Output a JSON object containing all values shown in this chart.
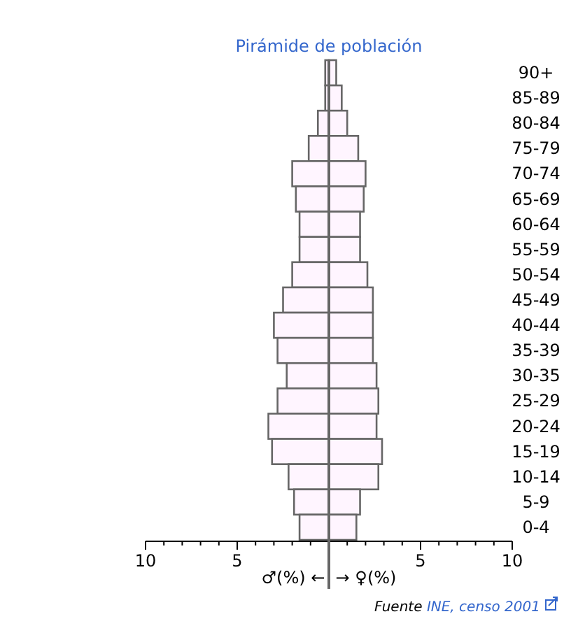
{
  "chart_data": {
    "type": "bar",
    "orientation": "horizontal",
    "stacked": true,
    "title": "Pirámide de población",
    "xlabel": "♂(%) ←  → ♀(%)",
    "categories": [
      "90+",
      "85-89",
      "80-84",
      "75-79",
      "70-74",
      "65-69",
      "60-64",
      "55-59",
      "50-54",
      "45-49",
      "40-44",
      "35-39",
      "30-35",
      "25-29",
      "20-24",
      "15-19",
      "10-14",
      "5-9",
      "0-4"
    ],
    "series": [
      {
        "color": "#fff5ff",
        "values": [
          -0.2,
          -0.2,
          -0.6,
          -1.1,
          -2.0,
          -1.8,
          -1.6,
          -1.6,
          -2.0,
          -2.5,
          -3.0,
          -2.8,
          -2.3,
          -2.8,
          -3.3,
          -3.1,
          -2.2,
          -1.9,
          -1.6
        ]
      },
      {
        "color": "#fff5ff",
        "values": [
          0.4,
          0.7,
          1.0,
          1.6,
          2.0,
          1.9,
          1.7,
          1.7,
          2.1,
          2.4,
          2.4,
          2.4,
          2.6,
          2.7,
          2.6,
          2.9,
          2.7,
          1.7,
          1.5
        ]
      }
    ],
    "xlim": [
      -10,
      10
    ],
    "xticks": [
      {
        "value": -10,
        "label": "10"
      },
      {
        "value": -9,
        "label": null
      },
      {
        "value": -8,
        "label": null
      },
      {
        "value": -7,
        "label": null
      },
      {
        "value": -6,
        "label": null
      },
      {
        "value": -5,
        "label": "5"
      },
      {
        "value": -4,
        "label": null
      },
      {
        "value": -3,
        "label": null
      },
      {
        "value": -2,
        "label": null
      },
      {
        "value": -1,
        "label": null
      },
      {
        "value": 0,
        "label": null
      },
      {
        "value": 1,
        "label": null
      },
      {
        "value": 2,
        "label": null
      },
      {
        "value": 3,
        "label": null
      },
      {
        "value": 4,
        "label": null
      },
      {
        "value": 5,
        "label": "5"
      },
      {
        "value": 6,
        "label": null
      },
      {
        "value": 7,
        "label": null
      },
      {
        "value": 8,
        "label": null
      },
      {
        "value": 9,
        "label": null
      },
      {
        "value": 10,
        "label": "10"
      }
    ],
    "ref_lines": [
      {
        "axis": "x",
        "value": 0,
        "color": "#666666"
      }
    ],
    "grid": false,
    "annotations": [
      "Fuente INE, censo 2001"
    ]
  }
}
